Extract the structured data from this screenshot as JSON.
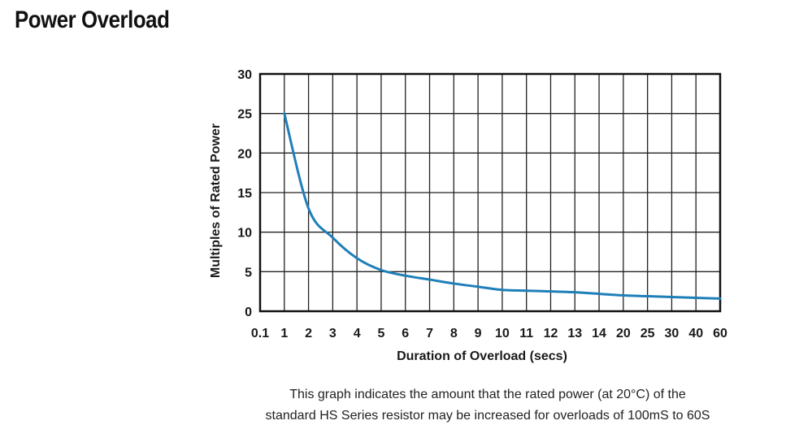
{
  "page": {
    "title": "Power Overload",
    "caption_line1": "This graph indicates the amount that the rated power (at 20°C) of the",
    "caption_line2": "standard HS Series resistor may be increased for overloads of 100mS to 60S"
  },
  "chart_data": {
    "type": "line",
    "title": "",
    "xlabel": "Duration of Overload (secs)",
    "ylabel": "Multiples of Rated Power",
    "x_scale": "categorical",
    "x_ticks": [
      "0.1",
      "1",
      "2",
      "3",
      "4",
      "5",
      "6",
      "7",
      "8",
      "9",
      "10",
      "11",
      "12",
      "13",
      "14",
      "20",
      "25",
      "30",
      "40",
      "60"
    ],
    "y_ticks": [
      0,
      5,
      10,
      15,
      20,
      25,
      30
    ],
    "ylim": [
      0,
      30
    ],
    "grid": true,
    "line_color": "#1f7fb8",
    "series": [
      {
        "x": [
          "1",
          "2",
          "3",
          "4",
          "5",
          "6",
          "7",
          "8",
          "9",
          "10",
          "11",
          "12",
          "13",
          "14",
          "20",
          "25",
          "30",
          "40",
          "60"
        ],
        "values": [
          25,
          13,
          9.3,
          6.7,
          5.2,
          4.5,
          4.0,
          3.5,
          3.1,
          2.7,
          2.6,
          2.5,
          2.4,
          2.2,
          2.0,
          1.9,
          1.8,
          1.7,
          1.6
        ]
      }
    ]
  }
}
